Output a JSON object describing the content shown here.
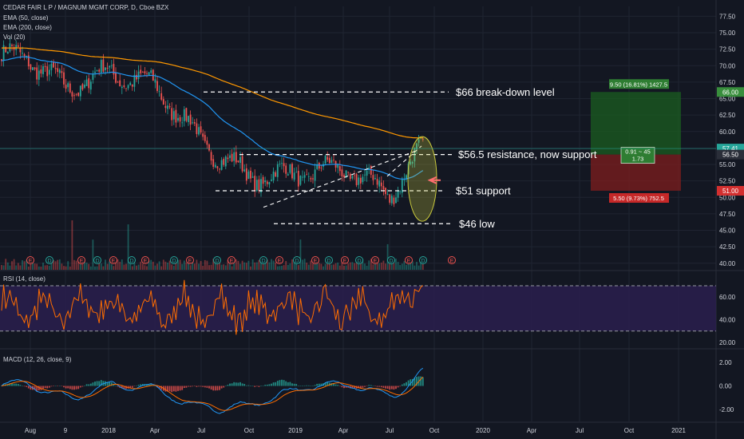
{
  "header": {
    "symbol_line": "CEDAR FAIR L P / MAGNUM MGMT CORP, D, Cboe BZX",
    "ema50_label": "EMA (50, close)",
    "ema200_label": "EMA (200, close)",
    "vol_label": "Vol (20)",
    "rsi_label": "RSI (14, close)",
    "macd_label": "MACD (12, 26, close, 9)"
  },
  "colors": {
    "background": "#131722",
    "candle_up": "#26a69a",
    "candle_down": "#ef5350",
    "ema50": "#2196f3",
    "ema200": "#ff9800",
    "rsi_line": "#ff6d00",
    "rsi_band": "#2a1e4d",
    "macd_line": "#2196f3",
    "signal_line": "#ff6d00",
    "profit_zone": "#1b5e20",
    "loss_zone": "#7f1d1d",
    "ellipse": "#c8c83c"
  },
  "chart_data": [
    {
      "type": "candlestick",
      "pane": "price",
      "title": "CEDAR FAIR L P / MAGNUM MGMT CORP, D, Cboe BZX",
      "x_ticks": [
        "Aug",
        "9",
        "2018",
        "Apr",
        "Jul",
        "Oct",
        "2019",
        "Apr",
        "Jul",
        "Oct",
        "2020",
        "Apr",
        "Jul",
        "Oct",
        "2021"
      ],
      "y_ticks": [
        "77.50",
        "75.00",
        "72.50",
        "70.00",
        "67.50",
        "65.00",
        "62.50",
        "60.00",
        "57.50",
        "55.00",
        "52.50",
        "50.00",
        "47.50",
        "45.00",
        "42.50",
        "40.00"
      ],
      "ylim": [
        39,
        79
      ],
      "price_path": [
        [
          "Aug",
          71.0
        ],
        [
          "9",
          66.5
        ],
        [
          "2018",
          69.0
        ],
        [
          "Apr",
          67.0
        ],
        [
          "Jul",
          58.5
        ],
        [
          "Oct",
          53.0
        ],
        [
          "2019",
          53.5
        ],
        [
          "Apr",
          54.5
        ],
        [
          "Jul",
          50.5
        ],
        [
          "Aug",
          57.4
        ]
      ],
      "last_price": "57.41",
      "price_labels": [
        {
          "value": 66.0,
          "text": "66.00",
          "color": "#388e3c"
        },
        {
          "value": 57.41,
          "text": "57.41",
          "color": "#26a69a"
        },
        {
          "value": 56.5,
          "text": "56.50",
          "color": "#2a2e39"
        },
        {
          "value": 51.0,
          "text": "51.00",
          "color": "#d32f2f"
        }
      ],
      "levels": [
        {
          "value": 66.0,
          "text": "$66 break-down level"
        },
        {
          "value": 56.5,
          "text": "$56.5 resistance, now support"
        },
        {
          "value": 51.0,
          "text": "$51 support"
        },
        {
          "value": 46.0,
          "text": "$46 low"
        }
      ],
      "position": {
        "target_label": "9.50 (16.81%) 1427.5",
        "stop_label": "5.50 (9.73%) 752.5",
        "ratio_line1": "0.91 ~ 45",
        "ratio_line2": "1.73",
        "entry": 56.5,
        "target": 66.0,
        "stop": 51.0
      },
      "earnings_marker": "E",
      "dividend_marker": "D"
    },
    {
      "type": "line",
      "pane": "rsi",
      "title": "RSI (14, close)",
      "y_ticks": [
        "60.00",
        "40.00",
        "20.00"
      ],
      "ylim": [
        15,
        82
      ],
      "bands": [
        30,
        70
      ]
    },
    {
      "type": "histogram+line",
      "pane": "macd",
      "title": "MACD (12, 26, close, 9)",
      "y_ticks": [
        "2.00",
        "0.00",
        "-2.00"
      ],
      "ylim": [
        -3,
        3
      ]
    }
  ]
}
